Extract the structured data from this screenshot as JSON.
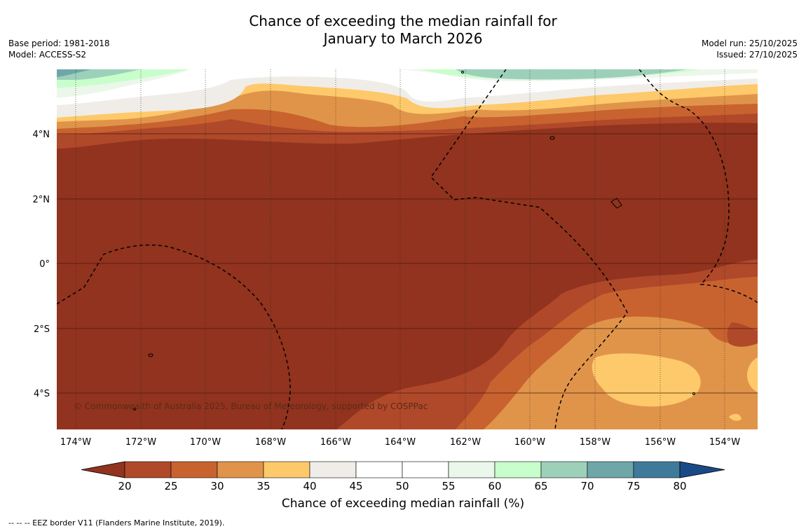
{
  "header": {
    "title_line1": "Chance of exceeding the median rainfall for",
    "title_line2": "January to March 2026",
    "base_period": "Base period: 1981-2018",
    "model": "Model: ACCESS-S2",
    "model_run": "Model run: 25/10/2025",
    "issued": "Issued: 27/10/2025"
  },
  "map": {
    "lon_labels": [
      "174°W",
      "172°W",
      "170°W",
      "168°W",
      "166°W",
      "164°W",
      "162°W",
      "160°W",
      "158°W",
      "156°W",
      "154°W"
    ],
    "lat_labels": [
      "4°N",
      "2°N",
      "0°",
      "2°S",
      "4°S"
    ],
    "copyright": "© Commonwealth of Australia 2025, Bureau of Meteorology, supported by COSPPac"
  },
  "colorbar": {
    "title": "Chance of exceeding median rainfall (%)",
    "ticks": [
      "20",
      "25",
      "30",
      "35",
      "40",
      "45",
      "50",
      "55",
      "60",
      "65",
      "70",
      "75",
      "80"
    ],
    "colors": [
      "#b0482a",
      "#c8632f",
      "#e0944a",
      "#fec96a",
      "#f0ede8",
      "#ffffff",
      "#ffffff",
      "#ebf7ea",
      "#c8fecb",
      "#9dd0b9",
      "#6fa7a9",
      "#3f7a9b"
    ],
    "under_color": "#91331e",
    "over_color": "#1a4a86"
  },
  "footer": {
    "note": "--  --  -- EEZ border V11 (Flanders Marine Institute, 2019)."
  }
}
